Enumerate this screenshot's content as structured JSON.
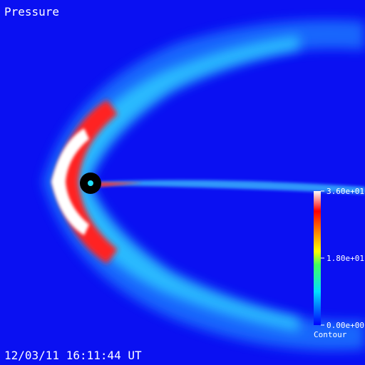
{
  "title": "Pressure",
  "timestamp": "12/03/11 16:11:44 UT",
  "colorbar": {
    "ticks": [
      {
        "value": 36,
        "label": "3.60e+01"
      },
      {
        "value": 18,
        "label": "1.80e+01"
      },
      {
        "value": 0,
        "label": "0.00e+00"
      }
    ],
    "caption": "Contour"
  }
}
